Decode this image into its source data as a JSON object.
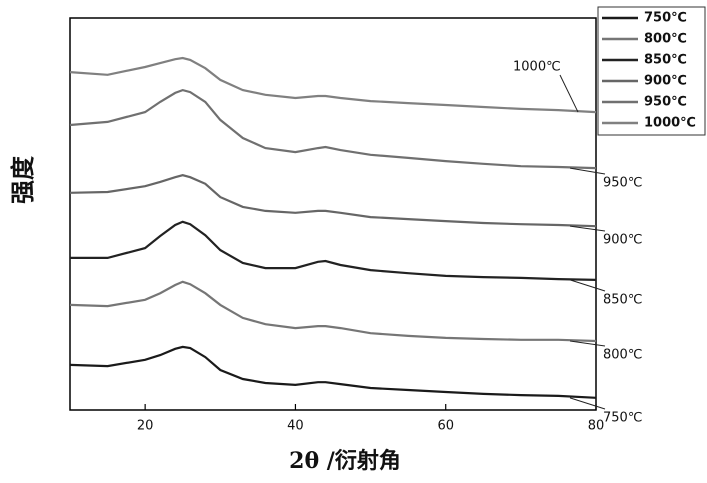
{
  "chart_data": {
    "type": "line",
    "x_label": "2θ /衍射角",
    "y_label": "强度",
    "x": [
      10,
      15,
      20,
      22,
      24,
      25,
      26,
      28,
      30,
      33,
      36,
      40,
      43,
      44,
      46,
      50,
      55,
      60,
      65,
      70,
      75,
      80
    ],
    "xlim": [
      10,
      80
    ],
    "xticks": [
      20,
      40,
      60,
      80
    ],
    "ylim": [
      0,
      100
    ],
    "legend": "upper-right",
    "series": [
      {
        "name": "750℃",
        "color": "#1a1a1a",
        "values": [
          11.5,
          11.2,
          12.8,
          14.0,
          15.6,
          16.1,
          15.8,
          13.5,
          10.2,
          7.9,
          6.9,
          6.4,
          7.1,
          7.1,
          6.6,
          5.6,
          5.1,
          4.6,
          4.1,
          3.8,
          3.6,
          3.1
        ]
      },
      {
        "name": "800℃",
        "color": "#767676",
        "values": [
          26.8,
          26.5,
          28.1,
          29.8,
          31.9,
          32.7,
          32.1,
          29.8,
          26.8,
          23.5,
          21.9,
          20.9,
          21.4,
          21.4,
          20.9,
          19.6,
          18.9,
          18.4,
          18.1,
          17.9,
          17.9,
          17.6
        ]
      },
      {
        "name": "850℃",
        "color": "#222222",
        "values": [
          38.8,
          38.8,
          41.3,
          44.4,
          47.2,
          48.0,
          47.4,
          44.6,
          40.8,
          37.5,
          36.2,
          36.2,
          37.8,
          38.0,
          37.0,
          35.7,
          34.9,
          34.2,
          33.9,
          33.7,
          33.4,
          33.2
        ]
      },
      {
        "name": "900℃",
        "color": "#666666",
        "values": [
          55.4,
          55.6,
          57.1,
          58.2,
          59.4,
          59.9,
          59.4,
          57.7,
          54.3,
          51.8,
          50.8,
          50.3,
          50.8,
          50.8,
          50.3,
          49.2,
          48.7,
          48.2,
          47.7,
          47.4,
          47.2,
          46.9
        ]
      },
      {
        "name": "950℃",
        "color": "#707070",
        "values": [
          72.7,
          73.5,
          76.0,
          78.6,
          80.9,
          81.6,
          81.1,
          78.6,
          74.0,
          69.4,
          66.8,
          65.8,
          66.8,
          67.1,
          66.3,
          65.1,
          64.3,
          63.5,
          62.8,
          62.2,
          62.0,
          61.7
        ]
      },
      {
        "name": "1000℃",
        "color": "#808080",
        "values": [
          86.2,
          85.5,
          87.5,
          88.5,
          89.5,
          89.8,
          89.3,
          87.2,
          84.2,
          81.6,
          80.4,
          79.6,
          80.1,
          80.1,
          79.6,
          78.8,
          78.3,
          77.8,
          77.3,
          76.8,
          76.5,
          76.0
        ]
      }
    ],
    "annotations": [
      "750℃",
      "800℃",
      "850℃",
      "900℃",
      "950℃",
      "1000℃"
    ]
  }
}
